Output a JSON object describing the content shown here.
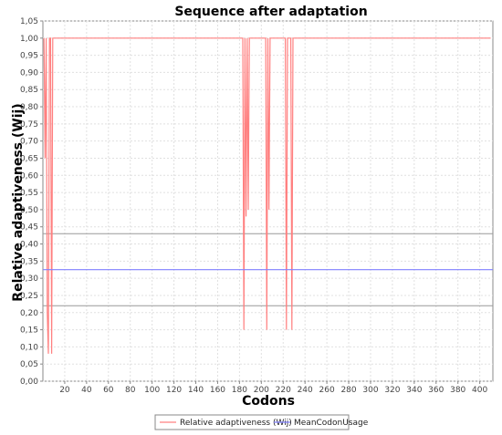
{
  "chart_data": {
    "type": "line",
    "title": "Sequence after adaptation",
    "xlabel": "Codons",
    "ylabel": "Relative adaptiveness (Wij)",
    "xlim": [
      0,
      412
    ],
    "ylim": [
      0,
      1.05
    ],
    "x_ticks": [
      20,
      40,
      60,
      80,
      100,
      120,
      140,
      160,
      180,
      200,
      220,
      240,
      260,
      280,
      300,
      320,
      340,
      360,
      380,
      400
    ],
    "y_ticks": [
      "0,00",
      "0,05",
      "0,10",
      "0,15",
      "0,20",
      "0,25",
      "0,30",
      "0,35",
      "0,40",
      "0,45",
      "0,50",
      "0,55",
      "0,60",
      "0,65",
      "0,70",
      "0,75",
      "0,80",
      "0,85",
      "0,90",
      "0,95",
      "1,00",
      "1,05"
    ],
    "grid": true,
    "legend_position": "bottom",
    "series": [
      {
        "name": "Relative adaptiveness (Wij)",
        "color": "#ff8080",
        "x": [
          1,
          2,
          3,
          4,
          5,
          6,
          7,
          8,
          9,
          10,
          11,
          183,
          184,
          185,
          186,
          187,
          188,
          189,
          190,
          204,
          205,
          206,
          207,
          208,
          209,
          222,
          223,
          224,
          227,
          228,
          229,
          230,
          410
        ],
        "y": [
          1.0,
          0.65,
          1.0,
          0.2,
          0.08,
          1.0,
          1.0,
          0.08,
          1.0,
          1.0,
          1.0,
          1.0,
          0.15,
          1.0,
          0.48,
          1.0,
          0.5,
          1.0,
          1.0,
          1.0,
          0.15,
          1.0,
          0.5,
          1.0,
          1.0,
          1.0,
          0.15,
          1.0,
          1.0,
          0.15,
          1.0,
          1.0,
          1.0
        ]
      },
      {
        "name": "MeanCodonUsage",
        "color": "#8080ff",
        "x": [
          0,
          412
        ],
        "y": [
          0.325,
          0.325
        ]
      }
    ],
    "reference_lines": [
      {
        "y": 0.43,
        "color": "#999999"
      },
      {
        "y": 0.22,
        "color": "#999999"
      }
    ]
  }
}
